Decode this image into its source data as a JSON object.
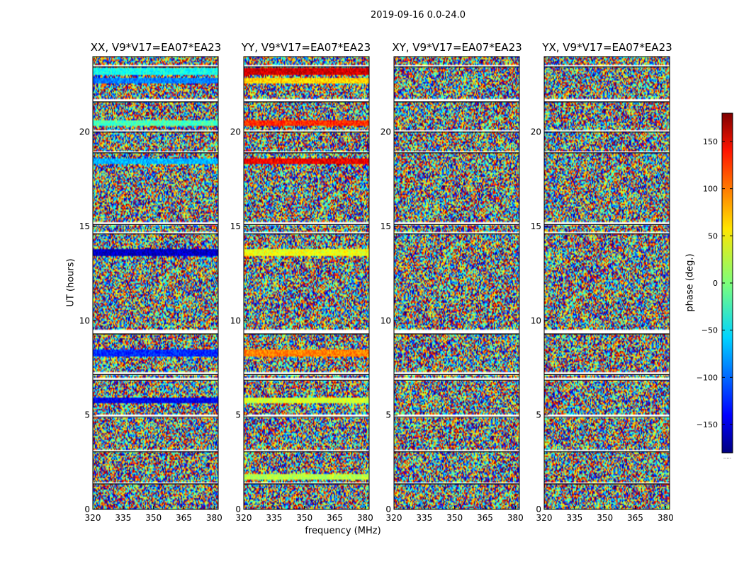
{
  "figure_title": "2019-09-16 0.0-24.0",
  "chart_data": {
    "type": "heatmap",
    "description_free": true,
    "title": "2019-09-16 0.0-24.0",
    "xlabel": "frequency (MHz)",
    "ylabel": "UT (hours)",
    "xlim": [
      320,
      382
    ],
    "ylim": [
      0,
      24
    ],
    "xticks": [
      "320",
      "335",
      "350",
      "365",
      "380"
    ],
    "yticks": [
      "0",
      "5",
      "10",
      "15",
      "20"
    ],
    "panels": [
      {
        "title": "XX, V9*V17=EA07*EA23",
        "bands": [
          {
            "t": [
              23.0,
              23.4
            ],
            "phase": -40
          },
          {
            "t": [
              22.6,
              22.9
            ],
            "phase": -90
          },
          {
            "t": [
              20.3,
              20.6
            ],
            "phase": -20
          },
          {
            "t": [
              18.3,
              18.6
            ],
            "phase": -70
          },
          {
            "t": [
              13.4,
              13.8
            ],
            "phase": -155
          },
          {
            "t": [
              8.1,
              8.5
            ],
            "phase": -120
          },
          {
            "t": [
              5.6,
              5.9
            ],
            "phase": -140
          }
        ]
      },
      {
        "title": "YY, V9*V17=EA07*EA23",
        "bands": [
          {
            "t": [
              23.0,
              23.4
            ],
            "phase": 150
          },
          {
            "t": [
              22.6,
              22.9
            ],
            "phase": 60
          },
          {
            "t": [
              20.3,
              20.6
            ],
            "phase": 120
          },
          {
            "t": [
              18.3,
              18.6
            ],
            "phase": 140
          },
          {
            "t": [
              13.4,
              13.8
            ],
            "phase": 40
          },
          {
            "t": [
              8.1,
              8.5
            ],
            "phase": 90
          },
          {
            "t": [
              5.6,
              5.9
            ],
            "phase": 30
          },
          {
            "t": [
              1.6,
              1.9
            ],
            "phase": 20
          }
        ]
      },
      {
        "title": "XY, V9*V17=EA07*EA23",
        "bands": []
      },
      {
        "title": "YX, V9*V17=EA07*EA23",
        "bands": []
      }
    ],
    "gaps_hours": [
      [
        23.45,
        23.55
      ],
      [
        21.6,
        21.75
      ],
      [
        20.0,
        20.1
      ],
      [
        18.9,
        19.0
      ],
      [
        15.1,
        15.25
      ],
      [
        14.6,
        14.7
      ],
      [
        9.3,
        9.55
      ],
      [
        7.15,
        7.25
      ],
      [
        6.85,
        7.0
      ],
      [
        4.9,
        5.0
      ],
      [
        3.05,
        3.15
      ],
      [
        1.35,
        1.45
      ]
    ],
    "colorbar": {
      "label": "phase (deg.)",
      "range": [
        -180,
        180
      ],
      "ticks": [
        "150",
        "100",
        "50",
        "0",
        "−50",
        "−100",
        "−150"
      ],
      "footnote": "....."
    }
  }
}
